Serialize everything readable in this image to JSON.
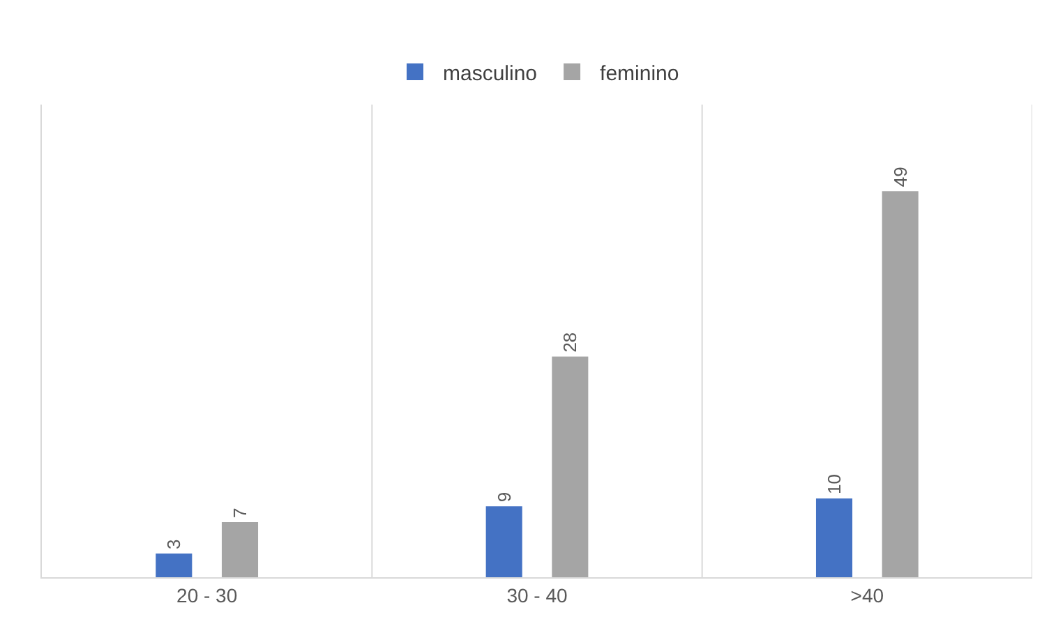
{
  "chart_data": {
    "type": "bar",
    "categories": [
      "20 - 30",
      "30 - 40",
      ">40"
    ],
    "series": [
      {
        "name": "masculino",
        "color": "#4472c4",
        "values": [
          3,
          9,
          10
        ]
      },
      {
        "name": "feminino",
        "color": "#a5a5a5",
        "values": [
          7,
          28,
          49
        ]
      }
    ],
    "ylim": [
      0,
      60
    ],
    "data_labels": true,
    "grid": "x",
    "legend": "top",
    "tick_labels": "x"
  }
}
